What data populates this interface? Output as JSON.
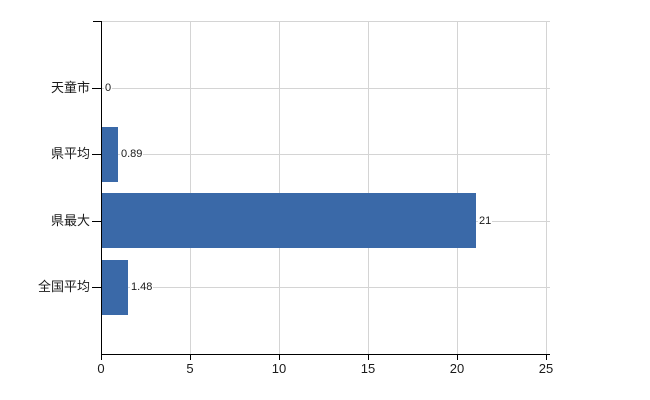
{
  "chart_data": {
    "type": "bar",
    "orientation": "horizontal",
    "title": "",
    "categories": [
      "天童市",
      "県平均",
      "県最大",
      "全国平均"
    ],
    "values": [
      0,
      0.89,
      21,
      1.48
    ],
    "value_labels": [
      "0",
      "0.89",
      "21",
      "1.48"
    ],
    "x_tick_values": [
      0,
      5,
      10,
      15,
      20,
      25
    ],
    "x_tick_labels": [
      "0",
      "5",
      "10",
      "15",
      "20",
      "25"
    ],
    "xlim": [
      0,
      25
    ],
    "xlabel": "",
    "ylabel": "",
    "grid": true,
    "legend": false,
    "colors": {
      "bar": "#3a69a8",
      "gridline": "#d4d4d4",
      "axis": "#000000",
      "text": "#1a1a1a",
      "background": "#ffffff"
    }
  }
}
